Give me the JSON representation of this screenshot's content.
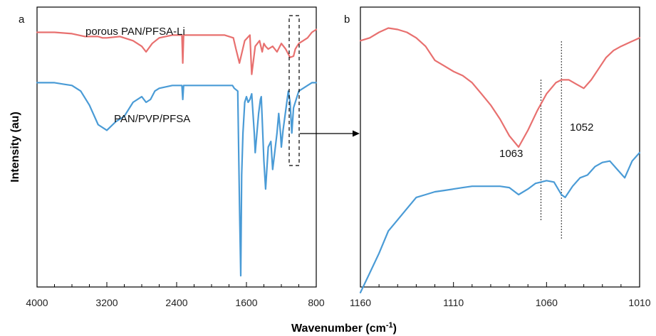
{
  "chart_data": [
    {
      "panel": "a",
      "type": "line",
      "xlabel": "Wavenumber (cm⁻¹)",
      "ylabel": "Intensity (au)",
      "xlim": [
        4000,
        800
      ],
      "x_ticks": [
        4000,
        3200,
        2400,
        1600,
        800
      ],
      "ylim": [
        0,
        100
      ],
      "grid": false,
      "series": [
        {
          "name": "porous PAN/PFSA-Li",
          "color": "#e8706f",
          "x": [
            4000,
            3800,
            3600,
            3450,
            3300,
            3250,
            3200,
            3050,
            2900,
            2800,
            2750,
            2680,
            2600,
            2450,
            2380,
            2340,
            2330,
            2320,
            2300,
            2200,
            2100,
            1950,
            1850,
            1750,
            1720,
            1680,
            1620,
            1560,
            1540,
            1500,
            1450,
            1420,
            1400,
            1380,
            1350,
            1300,
            1250,
            1200,
            1150,
            1100,
            1060,
            1040,
            1000,
            950,
            900,
            850,
            800
          ],
          "y": [
            91,
            91,
            90.5,
            89.5,
            89.5,
            89,
            89,
            89.5,
            88,
            86,
            84,
            87,
            89,
            90,
            90,
            90,
            80,
            90,
            90,
            90,
            90,
            90,
            90,
            89,
            85,
            80,
            88,
            90,
            76,
            86,
            88,
            84,
            87,
            86,
            85,
            86,
            84,
            87,
            85,
            82,
            82.5,
            85,
            87,
            88,
            89,
            91,
            92
          ]
        },
        {
          "name": "PAN/PVP/PFSA",
          "color": "#4a9bd6",
          "x": [
            4000,
            3800,
            3700,
            3600,
            3500,
            3400,
            3300,
            3200,
            3100,
            3000,
            2900,
            2800,
            2750,
            2700,
            2650,
            2600,
            2450,
            2380,
            2340,
            2330,
            2320,
            2300,
            2100,
            1900,
            1800,
            1760,
            1740,
            1700,
            1680,
            1665,
            1655,
            1640,
            1620,
            1600,
            1580,
            1560,
            1540,
            1510,
            1500,
            1480,
            1460,
            1440,
            1430,
            1420,
            1400,
            1380,
            1350,
            1320,
            1300,
            1280,
            1250,
            1230,
            1210,
            1200,
            1180,
            1150,
            1120,
            1100,
            1080,
            1060,
            1000,
            950,
            900,
            850,
            800
          ],
          "y": [
            73,
            73,
            72.5,
            72,
            70,
            65,
            58,
            56,
            59,
            61,
            66,
            68,
            66,
            67,
            70,
            71,
            72,
            72,
            72,
            67,
            72,
            72,
            72,
            72,
            72,
            72,
            71,
            70,
            30,
            4,
            40,
            55,
            66,
            68,
            66,
            67,
            69,
            55,
            48,
            55,
            62,
            67,
            68,
            60,
            45,
            35,
            50,
            52,
            42,
            47,
            55,
            62,
            55,
            50,
            56,
            63,
            70,
            66,
            55,
            64,
            70,
            71,
            72,
            73,
            73
          ]
        }
      ],
      "annotation": "dashed rectangle marking the 1160-1010 cm⁻¹ region, with an arrow pointing to panel b"
    },
    {
      "panel": "b",
      "type": "line",
      "xlim": [
        1160,
        1010
      ],
      "x_ticks": [
        1160,
        1110,
        1060,
        1010
      ],
      "ylim": [
        0,
        100
      ],
      "grid": false,
      "series": [
        {
          "name": "porous PAN/PFSA-Li",
          "color": "#e8706f",
          "x": [
            1160,
            1155,
            1150,
            1145,
            1140,
            1135,
            1130,
            1125,
            1120,
            1115,
            1110,
            1105,
            1100,
            1095,
            1090,
            1085,
            1080,
            1075,
            1070,
            1065,
            1060,
            1055,
            1052,
            1048,
            1044,
            1040,
            1036,
            1032,
            1028,
            1024,
            1020,
            1015,
            1010
          ],
          "y": [
            88,
            89,
            91,
            92.5,
            92,
            91,
            89,
            86,
            81,
            79,
            77,
            75.5,
            73,
            69,
            65,
            60,
            54,
            50,
            56,
            63,
            69,
            73,
            74,
            74,
            72.5,
            71,
            74,
            78,
            82,
            84.5,
            86,
            87.5,
            89
          ]
        },
        {
          "name": "PAN/PVP/PFSA",
          "color": "#4a9bd6",
          "x": [
            1160,
            1155,
            1150,
            1145,
            1140,
            1135,
            1130,
            1125,
            1120,
            1115,
            1110,
            1105,
            1100,
            1095,
            1090,
            1085,
            1080,
            1075,
            1070,
            1066,
            1063,
            1060,
            1056,
            1052,
            1050,
            1046,
            1042,
            1038,
            1034,
            1030,
            1026,
            1022,
            1018,
            1014,
            1010
          ],
          "y": [
            -2,
            5,
            12,
            20,
            24,
            28,
            32,
            33,
            34,
            34.5,
            35,
            35.5,
            36,
            36,
            36,
            36,
            35.5,
            33,
            35,
            37,
            37.5,
            38,
            37.5,
            33,
            32,
            36,
            39,
            40,
            43,
            44.5,
            45,
            42,
            39,
            45,
            48
          ]
        }
      ],
      "annotations": [
        {
          "text": "1063",
          "x": 1063
        },
        {
          "text": "1052",
          "x": 1052
        }
      ]
    }
  ],
  "labels": {
    "panel_a": "a",
    "panel_b": "b",
    "series_a": "porous PAN/PFSA-Li",
    "series_b": "PAN/PVP/PFSA",
    "ylabel": "Intensity (au)",
    "xlabel_main": "Wavenumber (cm",
    "xlabel_sup": "-1",
    "xlabel_close": ")",
    "annot_1063": "1063",
    "annot_1052": "1052"
  },
  "colors": {
    "red_series": "#e8706f",
    "blue_series": "#4a9bd6",
    "axis": "#000000"
  }
}
